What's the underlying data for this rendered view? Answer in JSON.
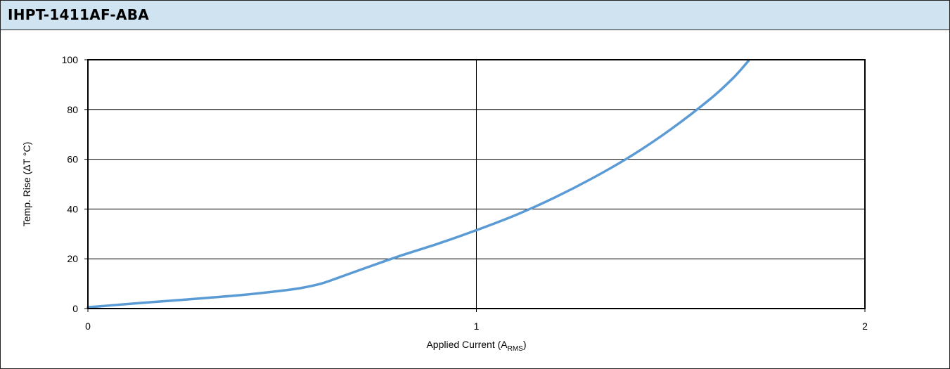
{
  "title": "IHPT-1411AF-ABA",
  "chart_data": {
    "type": "line",
    "xlabel": "Applied Current (A",
    "xlabel_sub": "RMS",
    "xlabel_suffix": ")",
    "ylabel": "Temp. Rise (ΔT °C)",
    "xlim": [
      0,
      2
    ],
    "ylim": [
      0,
      100
    ],
    "x_ticks": [
      "0",
      "1",
      "2"
    ],
    "y_ticks": [
      "0",
      "20",
      "40",
      "60",
      "80",
      "100"
    ],
    "grid": true,
    "series_color": "#5b9bd5",
    "series": [
      {
        "x": [
          0,
          0.1,
          0.2,
          0.3,
          0.4,
          0.5,
          0.55,
          0.6,
          0.65,
          0.7,
          0.8,
          0.9,
          1.0,
          1.1,
          1.2,
          1.3,
          1.4,
          1.5,
          1.6,
          1.66,
          1.7
        ],
        "y": [
          0.5,
          1.8,
          3.0,
          4.2,
          5.5,
          7.2,
          8.3,
          10.0,
          12.7,
          15.5,
          21.0,
          26.0,
          31.5,
          37.5,
          44.5,
          52.5,
          61.5,
          72.0,
          84.0,
          92.5,
          99.5
        ]
      }
    ]
  }
}
